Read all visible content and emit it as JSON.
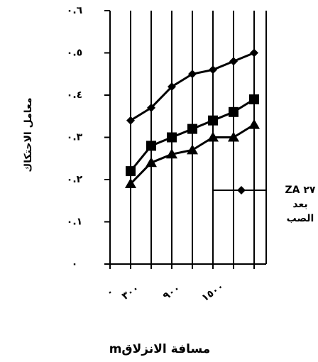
{
  "chart_data": {
    "type": "line",
    "y_label": "معامل الاحتكاك",
    "x_label": "مسافة الانزلاقm",
    "categories": [
      "٠",
      "٣٠٠",
      null,
      "٩٠٠",
      null,
      "١٥٠٠",
      null,
      null
    ],
    "series": [
      {
        "name": "ZA ٢٧ بعد الصب",
        "color": "#000000",
        "marker": "diamond",
        "values": [
          null,
          0.34,
          0.37,
          0.42,
          0.45,
          0.46,
          0.48,
          0.5
        ]
      },
      {
        "color": "#000000",
        "marker": "square",
        "values": [
          null,
          0.22,
          0.28,
          0.3,
          0.32,
          0.34,
          0.36,
          0.39
        ]
      },
      {
        "color": "#000000",
        "marker": "triangle",
        "values": [
          null,
          0.19,
          0.24,
          0.26,
          0.27,
          0.3,
          0.3,
          0.33
        ]
      }
    ],
    "ylim": [
      0,
      0.6
    ],
    "yticks": [
      {
        "value": 0,
        "label": "٠"
      },
      {
        "value": 0.1,
        "label": "٠.١"
      },
      {
        "value": 0.2,
        "label": "٠.٢"
      },
      {
        "value": 0.3,
        "label": "٠.٣"
      },
      {
        "value": 0.4,
        "label": "٠.٤"
      },
      {
        "value": 0.5,
        "label": "٠.٥"
      },
      {
        "value": 0.6,
        "label": "٠.٦"
      }
    ],
    "grid": "vertical"
  }
}
